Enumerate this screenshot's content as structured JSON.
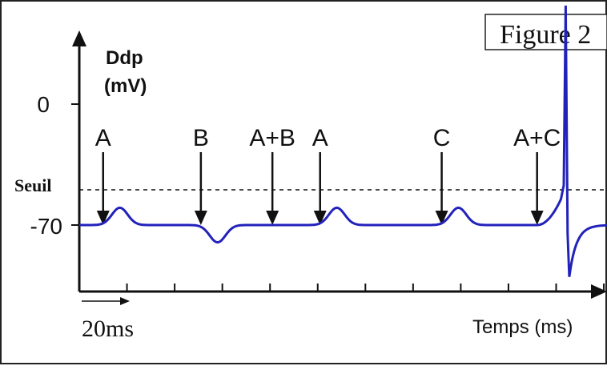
{
  "figure_label": "Figure 2",
  "chart_data": {
    "type": "line",
    "ylabel_line1": "Ddp",
    "ylabel_line2": "(mV)",
    "xlabel": "Temps (ms)",
    "y_ticks": [
      {
        "value": 0,
        "label": "0"
      },
      {
        "value": -70,
        "label": "-70"
      }
    ],
    "threshold": {
      "label": "Seuil",
      "value": -55
    },
    "time_scale_label": "20ms",
    "x_tick_values": [
      0,
      20,
      40,
      60,
      80,
      100,
      120,
      140,
      160,
      180,
      200,
      220
    ],
    "xlim": [
      0,
      222
    ],
    "ylim": [
      -110,
      55
    ],
    "resting": -70,
    "events": [
      {
        "label": "A",
        "t": 10,
        "kind": "epsp",
        "amp": 10
      },
      {
        "label": "B",
        "t": 51,
        "kind": "ipsp",
        "amp": 10
      },
      {
        "label": "A+B",
        "t": 81,
        "kind": "none",
        "amp": 0
      },
      {
        "label": "A",
        "t": 101,
        "kind": "epsp",
        "amp": 10
      },
      {
        "label": "C",
        "t": 152,
        "kind": "epsp",
        "amp": 10
      },
      {
        "label": "A+C",
        "t": 192,
        "kind": "spike",
        "amp": 0
      }
    ],
    "spike": {
      "peak": 57,
      "undershoot": -100
    },
    "colors": {
      "trace": "#2222bb",
      "axis": "#111111"
    }
  }
}
